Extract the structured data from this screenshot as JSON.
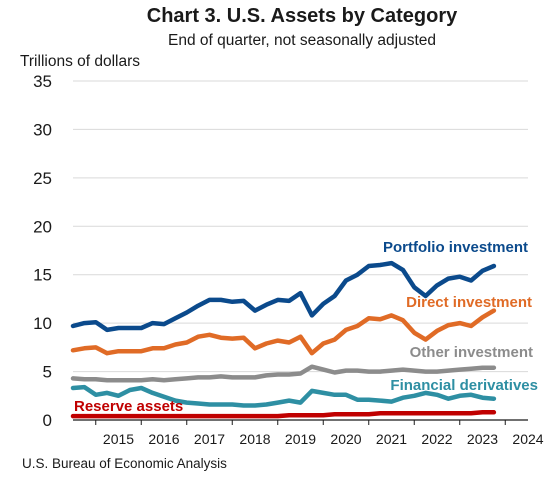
{
  "chart_data": {
    "type": "line",
    "title": "Chart 3. U.S. Assets by Category",
    "subtitle": "End of quarter, not seasonally adjusted",
    "ylabel": "Trillions of dollars",
    "source": "U.S. Bureau of Economic Analysis",
    "ylim": [
      0,
      35
    ],
    "yticks": [
      0,
      5,
      10,
      15,
      20,
      25,
      30,
      35
    ],
    "xlim": [
      2014.5,
      2024.5
    ],
    "xticks": [
      2015,
      2016,
      2017,
      2018,
      2019,
      2020,
      2021,
      2022,
      2023,
      2024
    ],
    "xtick_labels": [
      "2015",
      "2016",
      "2017",
      "2018",
      "2019",
      "2020",
      "2021",
      "2022",
      "2023",
      "2024"
    ],
    "grid": "horizontal",
    "x": [
      2014.5,
      2014.75,
      2015.0,
      2015.25,
      2015.5,
      2015.75,
      2016.0,
      2016.25,
      2016.5,
      2016.75,
      2017.0,
      2017.25,
      2017.5,
      2017.75,
      2018.0,
      2018.25,
      2018.5,
      2018.75,
      2019.0,
      2019.25,
      2019.5,
      2019.75,
      2020.0,
      2020.25,
      2020.5,
      2020.75,
      2021.0,
      2021.25,
      2021.5,
      2021.75,
      2022.0,
      2022.25,
      2022.5,
      2022.75,
      2023.0,
      2023.25,
      2023.5,
      2023.75
    ],
    "series": [
      {
        "name": "Portfolio investment",
        "color": "#0b4a8c",
        "values": [
          9.7,
          10.0,
          10.1,
          9.3,
          9.5,
          9.5,
          9.5,
          10.0,
          9.9,
          10.5,
          11.1,
          11.8,
          12.4,
          12.4,
          12.2,
          12.3,
          11.3,
          11.9,
          12.4,
          12.3,
          13.1,
          10.8,
          12.0,
          12.8,
          14.4,
          15.0,
          15.9,
          16.0,
          16.2,
          15.5,
          13.7,
          12.8,
          13.9,
          14.6,
          14.8,
          14.4,
          15.4,
          15.9
        ]
      },
      {
        "name": "Direct investment",
        "color": "#e06b26",
        "values": [
          7.2,
          7.4,
          7.5,
          6.9,
          7.1,
          7.1,
          7.1,
          7.4,
          7.4,
          7.8,
          8.0,
          8.6,
          8.8,
          8.5,
          8.4,
          8.5,
          7.4,
          7.9,
          8.2,
          8.0,
          8.6,
          6.9,
          7.9,
          8.3,
          9.3,
          9.7,
          10.5,
          10.4,
          10.8,
          10.3,
          9.0,
          8.3,
          9.2,
          9.8,
          10.0,
          9.7,
          10.6,
          11.3
        ]
      },
      {
        "name": "Other investment",
        "color": "#8c8c8c",
        "values": [
          4.3,
          4.2,
          4.2,
          4.1,
          4.1,
          4.1,
          4.1,
          4.2,
          4.1,
          4.2,
          4.3,
          4.4,
          4.4,
          4.5,
          4.4,
          4.4,
          4.4,
          4.6,
          4.7,
          4.7,
          4.8,
          5.5,
          5.2,
          4.9,
          5.1,
          5.1,
          5.0,
          5.0,
          5.1,
          5.2,
          5.1,
          5.0,
          5.0,
          5.1,
          5.2,
          5.3,
          5.4,
          5.4
        ]
      },
      {
        "name": "Financial derivatives",
        "color": "#2e8fa3",
        "values": [
          3.3,
          3.4,
          2.6,
          2.8,
          2.5,
          3.1,
          3.3,
          2.8,
          2.4,
          2.0,
          1.8,
          1.7,
          1.6,
          1.6,
          1.6,
          1.5,
          1.5,
          1.6,
          1.8,
          2.0,
          1.8,
          3.0,
          2.8,
          2.6,
          2.6,
          2.1,
          2.1,
          2.0,
          1.9,
          2.3,
          2.5,
          2.8,
          2.6,
          2.2,
          2.5,
          2.6,
          2.3,
          2.2
        ]
      },
      {
        "name": "Reserve assets",
        "color": "#c00000",
        "values": [
          0.4,
          0.4,
          0.4,
          0.4,
          0.4,
          0.4,
          0.4,
          0.4,
          0.4,
          0.4,
          0.4,
          0.4,
          0.4,
          0.4,
          0.4,
          0.4,
          0.4,
          0.4,
          0.4,
          0.5,
          0.5,
          0.5,
          0.5,
          0.6,
          0.6,
          0.6,
          0.6,
          0.7,
          0.7,
          0.7,
          0.7,
          0.7,
          0.7,
          0.7,
          0.7,
          0.7,
          0.8,
          0.8
        ]
      }
    ]
  }
}
